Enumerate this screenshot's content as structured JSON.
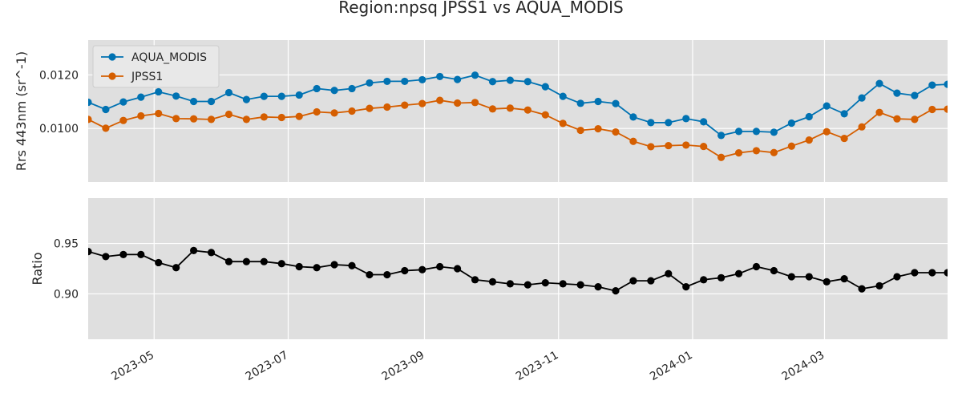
{
  "chart_data": [
    {
      "type": "line",
      "title": "Region:npsq JPSS1 vs AQUA_MODIS",
      "ylabel": "Rrs 443nm (sr^-1)",
      "xlabel": "",
      "ylim": [
        0.008,
        0.0133
      ],
      "yticks": [
        0.01,
        0.012
      ],
      "ytick_labels": [
        "0.0100",
        "0.0120"
      ],
      "xlim": [
        "2023-04-01",
        "2024-04-26"
      ],
      "xticks": [
        "2023-05-01",
        "2023-07-01",
        "2023-09-01",
        "2023-11-01",
        "2024-01-01",
        "2024-03-01"
      ],
      "xtick_labels": [
        "2023-05",
        "2023-07",
        "2023-09",
        "2023-11",
        "2024-01",
        "2024-03"
      ],
      "grid": true,
      "legend": "upper-left",
      "x": [
        "2023-04-01",
        "2023-04-09",
        "2023-04-17",
        "2023-04-25",
        "2023-05-03",
        "2023-05-11",
        "2023-05-19",
        "2023-05-27",
        "2023-06-04",
        "2023-06-12",
        "2023-06-20",
        "2023-06-28",
        "2023-07-06",
        "2023-07-14",
        "2023-07-22",
        "2023-07-30",
        "2023-08-07",
        "2023-08-15",
        "2023-08-23",
        "2023-08-31",
        "2023-09-08",
        "2023-09-16",
        "2023-09-24",
        "2023-10-02",
        "2023-10-10",
        "2023-10-18",
        "2023-10-26",
        "2023-11-03",
        "2023-11-11",
        "2023-11-19",
        "2023-11-27",
        "2023-12-05",
        "2023-12-13",
        "2023-12-21",
        "2023-12-29",
        "2024-01-06",
        "2024-01-14",
        "2024-01-22",
        "2024-01-30",
        "2024-02-07",
        "2024-02-15",
        "2024-02-23",
        "2024-03-02",
        "2024-03-10",
        "2024-03-18",
        "2024-03-26",
        "2024-04-03",
        "2024-04-11",
        "2024-04-19",
        "2024-04-26"
      ],
      "series": [
        {
          "name": "AQUA_MODIS",
          "color": "#0072b2",
          "values": [
            0.01098,
            0.01071,
            0.01099,
            0.01117,
            0.01137,
            0.01121,
            0.01101,
            0.01101,
            0.01134,
            0.01108,
            0.0112,
            0.0112,
            0.01125,
            0.01149,
            0.01142,
            0.01149,
            0.0117,
            0.01176,
            0.01176,
            0.01182,
            0.01194,
            0.01183,
            0.01199,
            0.01175,
            0.0118,
            0.01175,
            0.01156,
            0.0112,
            0.01094,
            0.01101,
            0.01093,
            0.01043,
            0.01022,
            0.01022,
            0.01037,
            0.01025,
            0.00974,
            0.00989,
            0.00989,
            0.00986,
            0.0102,
            0.01044,
            0.01084,
            0.01055,
            0.01114,
            0.01168,
            0.01132,
            0.01123,
            0.01162,
            0.01165
          ]
        },
        {
          "name": "JPSS1",
          "color": "#d55e00",
          "values": [
            0.01034,
            0.01001,
            0.0103,
            0.01047,
            0.01056,
            0.01037,
            0.01036,
            0.01034,
            0.01053,
            0.01034,
            0.01043,
            0.01041,
            0.01045,
            0.01062,
            0.01058,
            0.01065,
            0.01075,
            0.0108,
            0.01087,
            0.01093,
            0.01105,
            0.01095,
            0.01097,
            0.01073,
            0.01076,
            0.01069,
            0.01051,
            0.01019,
            0.00993,
            0.00999,
            0.00987,
            0.00952,
            0.00932,
            0.00936,
            0.00938,
            0.00933,
            0.00892,
            0.00909,
            0.00917,
            0.0091,
            0.00934,
            0.00957,
            0.00988,
            0.00963,
            0.01006,
            0.0106,
            0.01036,
            0.01034,
            0.01071,
            0.01072
          ]
        }
      ]
    },
    {
      "type": "line",
      "title": "",
      "ylabel": "Ratio",
      "xlabel": "",
      "ylim": [
        0.855,
        0.995
      ],
      "yticks": [
        0.9,
        0.95
      ],
      "ytick_labels": [
        "0.90",
        "0.95"
      ],
      "xlim": [
        "2023-04-01",
        "2024-04-26"
      ],
      "xticks": [
        "2023-05-01",
        "2023-07-01",
        "2023-09-01",
        "2023-11-01",
        "2024-01-01",
        "2024-03-01"
      ],
      "xtick_labels": [
        "2023-05",
        "2023-07",
        "2023-09",
        "2023-11",
        "2024-01",
        "2024-03"
      ],
      "grid": true,
      "legend": "none",
      "x": [
        "2023-04-01",
        "2023-04-09",
        "2023-04-17",
        "2023-04-25",
        "2023-05-03",
        "2023-05-11",
        "2023-05-19",
        "2023-05-27",
        "2023-06-04",
        "2023-06-12",
        "2023-06-20",
        "2023-06-28",
        "2023-07-06",
        "2023-07-14",
        "2023-07-22",
        "2023-07-30",
        "2023-08-07",
        "2023-08-15",
        "2023-08-23",
        "2023-08-31",
        "2023-09-08",
        "2023-09-16",
        "2023-09-24",
        "2023-10-02",
        "2023-10-10",
        "2023-10-18",
        "2023-10-26",
        "2023-11-03",
        "2023-11-11",
        "2023-11-19",
        "2023-11-27",
        "2023-12-05",
        "2023-12-13",
        "2023-12-21",
        "2023-12-29",
        "2024-01-06",
        "2024-01-14",
        "2024-01-22",
        "2024-01-30",
        "2024-02-07",
        "2024-02-15",
        "2024-02-23",
        "2024-03-02",
        "2024-03-10",
        "2024-03-18",
        "2024-03-26",
        "2024-04-03",
        "2024-04-11",
        "2024-04-19",
        "2024-04-26"
      ],
      "series": [
        {
          "name": "",
          "color": "#000000",
          "values": [
            0.942,
            0.937,
            0.939,
            0.939,
            0.931,
            0.926,
            0.943,
            0.941,
            0.932,
            0.932,
            0.932,
            0.93,
            0.927,
            0.926,
            0.929,
            0.928,
            0.919,
            0.919,
            0.923,
            0.924,
            0.927,
            0.925,
            0.914,
            0.912,
            0.91,
            0.909,
            0.911,
            0.91,
            0.909,
            0.907,
            0.903,
            0.913,
            0.913,
            0.92,
            0.907,
            0.914,
            0.916,
            0.92,
            0.927,
            0.923,
            0.917,
            0.917,
            0.912,
            0.915,
            0.905,
            0.908,
            0.917,
            0.921,
            0.921,
            0.921
          ]
        }
      ]
    }
  ]
}
